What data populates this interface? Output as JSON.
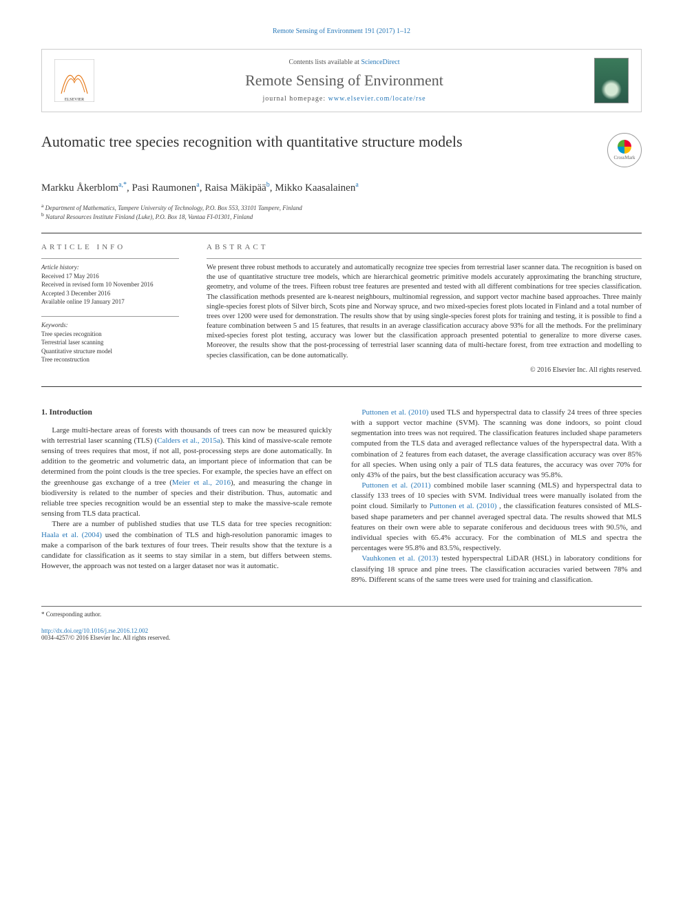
{
  "running_head": "Remote Sensing of Environment 191 (2017) 1–12",
  "header": {
    "contents_prefix": "Contents lists available at ",
    "contents_link": "ScienceDirect",
    "journal_name": "Remote Sensing of Environment",
    "homepage_prefix": "journal homepage: ",
    "homepage_url": "www.elsevier.com/locate/rse"
  },
  "crossmark_label": "CrossMark",
  "title": "Automatic tree species recognition with quantitative structure models",
  "authors_html": "Markku Åkerblom<sup>a,*</sup>, Pasi Raumonen<sup>a</sup>, Raisa Mäkipää<sup>b</sup>, Mikko Kaasalainen<sup>a</sup>",
  "affiliations": [
    {
      "sup": "a",
      "text": "Department of Mathematics, Tampere University of Technology, P.O. Box 553, 33101 Tampere, Finland"
    },
    {
      "sup": "b",
      "text": "Natural Resources Institute Finland (Luke), P.O. Box 18, Vantaa FI-01301, Finland"
    }
  ],
  "info": {
    "heading": "ARTICLE INFO",
    "history_label": "Article history:",
    "history": [
      "Received 17 May 2016",
      "Received in revised form 10 November 2016",
      "Accepted 3 December 2016",
      "Available online 19 January 2017"
    ],
    "keywords_label": "Keywords:",
    "keywords": [
      "Tree species recognition",
      "Terrestrial laser scanning",
      "Quantitative structure model",
      "Tree reconstruction"
    ]
  },
  "abstract": {
    "heading": "ABSTRACT",
    "text": "We present three robust methods to accurately and automatically recognize tree species from terrestrial laser scanner data. The recognition is based on the use of quantitative structure tree models, which are hierarchical geometric primitive models accurately approximating the branching structure, geometry, and volume of the trees. Fifteen robust tree features are presented and tested with all different combinations for tree species classification. The classification methods presented are k-nearest neighbours, multinomial regression, and support vector machine based approaches. Three mainly single-species forest plots of Silver birch, Scots pine and Norway spruce, and two mixed-species forest plots located in Finland and a total number of trees over 1200 were used for demonstration. The results show that by using single-species forest plots for training and testing, it is possible to find a feature combination between 5 and 15 features, that results in an average classification accuracy above 93% for all the methods. For the preliminary mixed-species forest plot testing, accuracy was lower but the classification approach presented potential to generalize to more diverse cases. Moreover, the results show that the post-processing of terrestrial laser scanning data of multi-hectare forest, from tree extraction and modelling to species classification, can be done automatically.",
    "copyright": "© 2016 Elsevier Inc. All rights reserved."
  },
  "section1": {
    "heading": "1. Introduction",
    "paragraphs": [
      "Large multi-hectare areas of forests with thousands of trees can now be measured quickly with terrestrial laser scanning (TLS) (<span class=\"cite\">Calders et al., 2015a</span>). This kind of massive-scale remote sensing of trees requires that most, if not all, post-processing steps are done automatically. In addition to the geometric and volumetric data, an important piece of information that can be determined from the point clouds is the tree species. For example, the species have an effect on the greenhouse gas exchange of a tree (<span class=\"cite\">Meier et al., 2016</span>), and measuring the change in biodiversity is related to the number of species and their distribution. Thus, automatic and reliable tree species recognition would be an essential step to make the massive-scale remote sensing from TLS data practical.",
      "There are a number of published studies that use TLS data for tree species recognition: <span class=\"cite\">Haala et al. (2004)</span> used the combination of TLS and high-resolution panoramic images to make a comparison of the bark textures of four trees. Their results show that the texture is a candidate for classification as it seems to stay similar in a stem, but differs between stems. However, the approach was not tested on a larger dataset nor was it automatic.",
      "<span class=\"cite\">Puttonen et al. (2010)</span> used TLS and hyperspectral data to classify 24 trees of three species with a support vector machine (SVM). The scanning was done indoors, so point cloud segmentation into trees was not required. The classification features included shape parameters computed from the TLS data and averaged reflectance values of the hyperspectral data. With a combination of 2 features from each dataset, the average classification accuracy was over 85% for all species. When using only a pair of TLS data features, the accuracy was over 70% for only 43% of the pairs, but the best classification accuracy was 95.8%.",
      "<span class=\"cite\">Puttonen et al. (2011)</span> combined mobile laser scanning (MLS) and hyperspectral data to classify 133 trees of 10 species with SVM. Individual trees were manually isolated from the point cloud. Similarly to <span class=\"cite\">Puttonen et al. (2010)</span> , the classification features consisted of MLS-based shape parameters and per channel averaged spectral data. The results showed that MLS features on their own were able to separate coniferous and deciduous trees with 90.5%, and individual species with 65.4% accuracy. For the combination of MLS and spectra the percentages were 95.8% and 83.5%, respectively.",
      "<span class=\"cite\">Vauhkonen et al. (2013)</span> tested hyperspectral LiDAR (HSL) in laboratory conditions for classifying 18 spruce and pine trees. The classification accuracies varied between 78% and 89%. Different scans of the same trees were used for training and classification."
    ]
  },
  "footer": {
    "corr": "* Corresponding author.",
    "doi": "http://dx.doi.org/10.1016/j.rse.2016.12.002",
    "issn": "0034-4257/© 2016 Elsevier Inc. All rights reserved."
  }
}
